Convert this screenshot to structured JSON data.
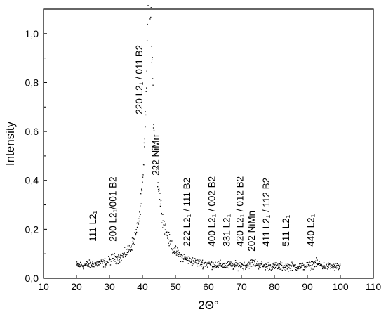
{
  "chart_data": {
    "type": "scatter",
    "xlabel": "2Θ°",
    "ylabel": "Intensity",
    "xlim": [
      10,
      110
    ],
    "ylim": [
      0,
      1.1
    ],
    "xticks": [
      10,
      20,
      30,
      40,
      50,
      60,
      70,
      80,
      90,
      100,
      110
    ],
    "yticks": [
      0.0,
      0.2,
      0.4,
      0.6,
      0.8,
      1.0
    ],
    "ytick_labels": [
      "0,0",
      "0,2",
      "0,4",
      "0,6",
      "0,8",
      "1,0"
    ],
    "grid": false,
    "legend": "none",
    "marker_color": "#000000",
    "profile": {
      "x_range": [
        20,
        100
      ],
      "step": 0.1,
      "background_level": 0.045,
      "peaks": [
        {
          "center": 42.0,
          "height": 0.92,
          "width": 0.9
        },
        {
          "center": 43.0,
          "height": 0.35,
          "width": 3.0
        },
        {
          "center": 31.0,
          "height": 0.015,
          "width": 0.5
        },
        {
          "center": 73.5,
          "height": 0.015,
          "width": 1.5
        },
        {
          "center": 92.5,
          "height": 0.015,
          "width": 1.5
        }
      ]
    },
    "annotations": [
      {
        "text": "111 L2₁",
        "x": 26.0,
        "y": 0.15
      },
      {
        "text": "200 L2₁/001 B2",
        "x": 32.0,
        "y": 0.15
      },
      {
        "text": "220 L2₁ / 011 B2",
        "x": 40.0,
        "y": 0.67
      },
      {
        "text": "222 NiMn",
        "x": 45.0,
        "y": 0.42
      },
      {
        "text": "222 L2₁ / 111 B2",
        "x": 54.5,
        "y": 0.13
      },
      {
        "text": "400 L2₁ / 002 B2",
        "x": 62.0,
        "y": 0.13
      },
      {
        "text": "331 L2₁",
        "x": 66.5,
        "y": 0.13
      },
      {
        "text": "420 L2₁ / 012 B2",
        "x": 70.5,
        "y": 0.13
      },
      {
        "text": "202 NiMn",
        "x": 74.0,
        "y": 0.11
      },
      {
        "text": "411 L2₁ / 112 B2",
        "x": 78.5,
        "y": 0.13
      },
      {
        "text": "511 L2₁",
        "x": 84.5,
        "y": 0.13
      },
      {
        "text": "440 L2₁",
        "x": 92.0,
        "y": 0.13
      }
    ]
  }
}
